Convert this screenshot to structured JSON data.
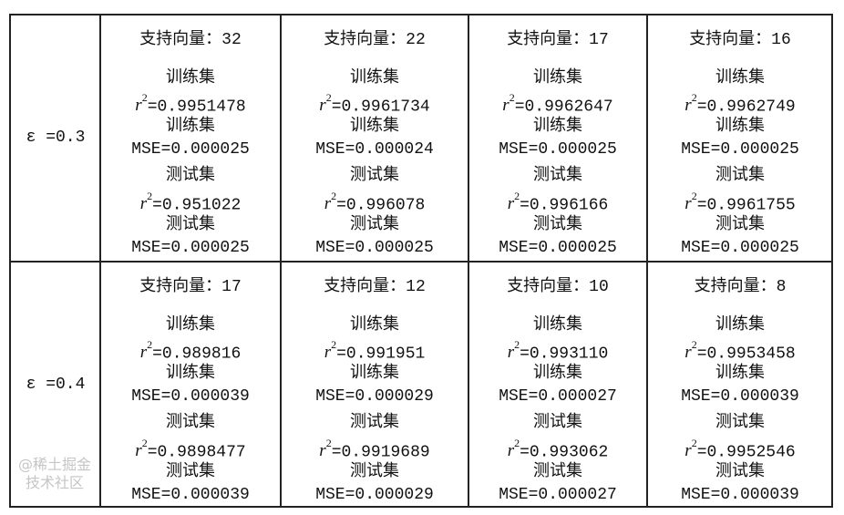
{
  "labels": {
    "train": "训练集",
    "test": "测试集",
    "r_symbol": "r",
    "r_exp": "2"
  },
  "rows": [
    {
      "epsilon": "ε =0.3",
      "cells": [
        {
          "sv": "支持向量：32",
          "train_r2": "=0.9951478",
          "train_mse": "MSE=0.000025",
          "test_r2": "=0.951022",
          "test_mse": "MSE=0.000025"
        },
        {
          "sv": "支持向量：22",
          "train_r2": "=0.9961734",
          "train_mse": "MSE=0.000024",
          "test_r2": "=0.996078",
          "test_mse": "MSE=0.000025"
        },
        {
          "sv": "支持向量：17",
          "train_r2": "=0.9962647",
          "train_mse": "MSE=0.000025",
          "test_r2": "=0.996166",
          "test_mse": "MSE=0.000025",
          "overlapped_label": true
        },
        {
          "sv": "支持向量：16",
          "train_r2": "=0.9962749",
          "train_mse": "MSE=0.000025",
          "test_r2": "=0.9961755",
          "test_mse": "MSE=0.000025"
        }
      ]
    },
    {
      "epsilon": "ε =0.4",
      "cells": [
        {
          "sv": "支持向量：17",
          "train_r2": "=0.989816",
          "train_mse": "MSE=0.000039",
          "test_r2": "=0.9898477",
          "test_mse": "MSE=0.000039"
        },
        {
          "sv": "支持向量：12",
          "train_r2": "=0.991951",
          "train_mse": "MSE=0.000029",
          "test_r2": "=0.9919689",
          "test_mse": "MSE=0.000029"
        },
        {
          "sv": "支持向量：10",
          "train_r2": "=0.993110",
          "train_mse": "MSE=0.000027",
          "test_r2": "=0.993062",
          "test_mse": "MSE=0.000027"
        },
        {
          "sv": "支持向量：8",
          "train_r2": "=0.9953458",
          "train_mse": "MSE=0.000039",
          "test_r2": "=0.9952546",
          "test_mse": "MSE=0.000039"
        }
      ]
    }
  ],
  "watermark": "@稀土掘金技术社区"
}
